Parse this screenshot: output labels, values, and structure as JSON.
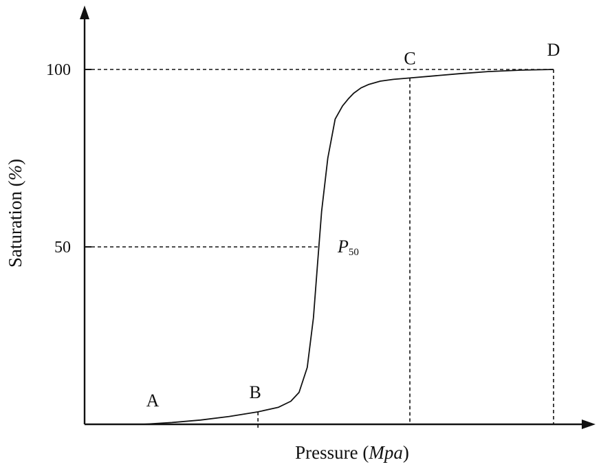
{
  "chart_data": {
    "type": "line",
    "title": "",
    "xlabel": {
      "text": "Pressure (",
      "unit": "Mpa",
      "close": ")"
    },
    "ylabel": {
      "text": "Saturation (",
      "unit": "%",
      "close": ")"
    },
    "ylim": [
      0,
      100
    ],
    "xlim": [
      0,
      100
    ],
    "y_ticks": [
      "50",
      "100"
    ],
    "y_tick_values": [
      50,
      100
    ],
    "grid": false,
    "series": [
      {
        "x": [
          0,
          7,
          14,
          21,
          28,
          33,
          36,
          38,
          40,
          41.5,
          42.5,
          43.5,
          45,
          46.8,
          48.6,
          50,
          51.3,
          53.1,
          55,
          57.8,
          61,
          65,
          70,
          77,
          84,
          92,
          100
        ],
        "values": [
          0,
          0.5,
          1.2,
          2.2,
          3.5,
          4.8,
          6.5,
          9,
          16,
          30,
          45,
          60,
          75,
          86,
          89.7,
          91.7,
          93.3,
          94.8,
          95.8,
          96.7,
          97.2,
          97.6,
          98.1,
          98.8,
          99.4,
          99.8,
          100
        ]
      }
    ],
    "markers": [
      {
        "label": "A",
        "x": 0,
        "y": 0
      },
      {
        "label": "B",
        "x": 28,
        "y": 3.5
      },
      {
        "label": "C",
        "x": 65,
        "y": 97.6
      },
      {
        "label": "D",
        "x": 100,
        "y": 100
      }
    ],
    "p50": {
      "label": "P",
      "subscript": "50",
      "x": 42.6,
      "y": 50
    }
  }
}
